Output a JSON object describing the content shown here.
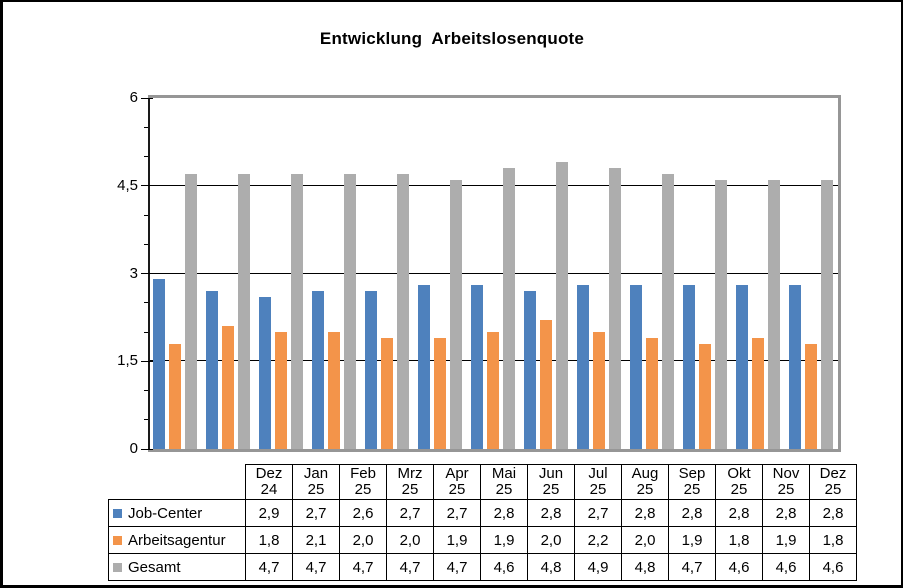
{
  "title": "Entwicklung  Arbeitslosenquote",
  "y_axis": {
    "labels": [
      {
        "text": "6",
        "value": 6
      },
      {
        "text": "4,5",
        "value": 4.5
      },
      {
        "text": "3",
        "value": 3
      },
      {
        "text": "1,5",
        "value": 1.5
      },
      {
        "text": "0",
        "value": 0
      }
    ],
    "major_ticks": [
      0,
      1.5,
      3,
      4.5,
      6
    ],
    "minor_ticks": [
      0.5,
      1,
      2,
      2.5,
      3.5,
      4,
      5,
      5.5
    ],
    "gridlines": [
      1.5,
      3,
      4.5
    ]
  },
  "chart_data": {
    "type": "bar",
    "title": "Entwicklung  Arbeitslosenquote",
    "categories": [
      "Dez 24",
      "Jan 25",
      "Feb 25",
      "Mrz 25",
      "Apr 25",
      "Mai 25",
      "Jun 25",
      "Jul 25",
      "Aug 25",
      "Sep 25",
      "Okt 25",
      "Nov 25",
      "Dez 25"
    ],
    "series": [
      {
        "name": "Job-Center",
        "color": "#4E81BD",
        "values": [
          2.9,
          2.7,
          2.6,
          2.7,
          2.7,
          2.8,
          2.8,
          2.7,
          2.8,
          2.8,
          2.8,
          2.8,
          2.8
        ]
      },
      {
        "name": "Arbeitsagentur",
        "color": "#F3944A",
        "values": [
          1.8,
          2.1,
          2.0,
          2.0,
          1.9,
          1.9,
          2.0,
          2.2,
          2.0,
          1.9,
          1.8,
          1.9,
          1.8
        ]
      },
      {
        "name": "Gesamt",
        "color": "#ADADAD",
        "values": [
          4.7,
          4.7,
          4.7,
          4.7,
          4.7,
          4.6,
          4.8,
          4.9,
          4.8,
          4.7,
          4.6,
          4.6,
          4.6
        ]
      }
    ],
    "ylim": [
      0,
      6
    ],
    "yticks": [
      0,
      1.5,
      3,
      4.5,
      6
    ],
    "grid": true,
    "legend_position": "table-rows-left",
    "decimal_separator": ","
  },
  "table": {
    "month_headers": [
      "Dez\n24",
      "Jan\n25",
      "Feb\n25",
      "Mrz\n25",
      "Apr\n25",
      "Mai\n25",
      "Jun\n25",
      "Jul\n25",
      "Aug\n25",
      "Sep\n25",
      "Okt\n25",
      "Nov\n25",
      "Dez\n25"
    ],
    "rows": [
      {
        "label": "Job-Center",
        "swatch": "#4E81BD",
        "values": [
          "2,9",
          "2,7",
          "2,6",
          "2,7",
          "2,7",
          "2,8",
          "2,8",
          "2,7",
          "2,8",
          "2,8",
          "2,8",
          "2,8",
          "2,8"
        ]
      },
      {
        "label": "Arbeitsagentur",
        "swatch": "#F3944A",
        "values": [
          "1,8",
          "2,1",
          "2,0",
          "2,0",
          "1,9",
          "1,9",
          "2,0",
          "2,2",
          "2,0",
          "1,9",
          "1,8",
          "1,9",
          "1,8"
        ]
      },
      {
        "label": "Gesamt",
        "swatch": "#ADADAD",
        "values": [
          "4,7",
          "4,7",
          "4,7",
          "4,7",
          "4,7",
          "4,6",
          "4,8",
          "4,9",
          "4,8",
          "4,7",
          "4,6",
          "4,6",
          "4,6"
        ]
      }
    ]
  },
  "colors": {
    "plot_border": "#969696",
    "gridline": "#000000",
    "axis": "#1a1a1a",
    "table_border": "#000000"
  }
}
